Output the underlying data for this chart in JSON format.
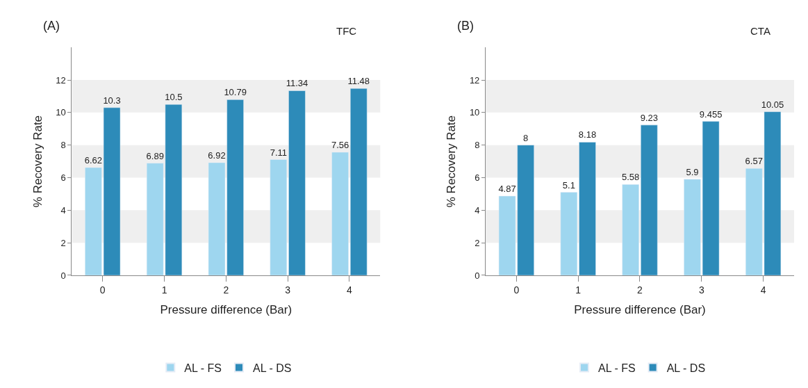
{
  "chart_data": [
    {
      "type": "bar",
      "title": "(A)",
      "subtitle": "TFC",
      "xlabel": "Pressure difference (Bar)",
      "ylabel": "% Recovery Rate",
      "categories": [
        "0",
        "1",
        "2",
        "3",
        "4"
      ],
      "series": [
        {
          "name": "AL - FS",
          "color": "#9ed6ef",
          "values": [
            6.62,
            6.89,
            6.92,
            7.11,
            7.56
          ]
        },
        {
          "name": "AL - DS",
          "color": "#2d8bb9",
          "values": [
            10.3,
            10.5,
            10.79,
            11.34,
            11.48
          ]
        }
      ],
      "ylim": [
        0,
        14
      ],
      "yticks": [
        0,
        2,
        4,
        6,
        8,
        10,
        12
      ],
      "data_labels": true,
      "legend": "bottom",
      "grid": false,
      "bands": [
        {
          "axis": "y",
          "from": 2,
          "to": 4,
          "color": "#efefef"
        },
        {
          "axis": "y",
          "from": 6,
          "to": 8,
          "color": "#efefef"
        },
        {
          "axis": "y",
          "from": 10,
          "to": 12,
          "color": "#efefef"
        }
      ]
    },
    {
      "type": "bar",
      "title": "(B)",
      "subtitle": "CTA",
      "xlabel": "Pressure difference (Bar)",
      "ylabel": "% Recovery Rate",
      "categories": [
        "0",
        "1",
        "2",
        "3",
        "4"
      ],
      "series": [
        {
          "name": "AL - FS",
          "color": "#9ed6ef",
          "values": [
            4.87,
            5.1,
            5.58,
            5.9,
            6.57
          ]
        },
        {
          "name": "AL - DS",
          "color": "#2d8bb9",
          "values": [
            8,
            8.18,
            9.23,
            9.455,
            10.05
          ]
        }
      ],
      "ylim": [
        0,
        14
      ],
      "yticks": [
        0,
        2,
        4,
        6,
        8,
        10,
        12
      ],
      "data_labels": true,
      "legend": "bottom",
      "grid": false,
      "bands": [
        {
          "axis": "y",
          "from": 2,
          "to": 4,
          "color": "#efefef"
        },
        {
          "axis": "y",
          "from": 6,
          "to": 8,
          "color": "#efefef"
        },
        {
          "axis": "y",
          "from": 10,
          "to": 12,
          "color": "#efefef"
        }
      ]
    }
  ]
}
